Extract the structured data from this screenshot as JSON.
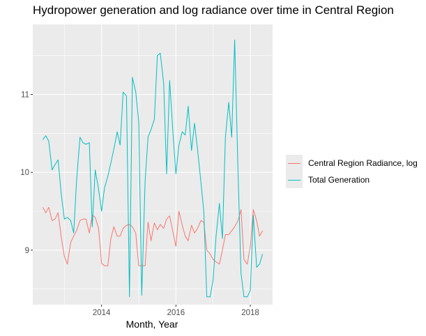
{
  "chart_data": {
    "type": "line",
    "title": "Hydropower generation and log radiance over time in Central Region",
    "xlabel": "Month, Year",
    "ylabel": "",
    "x_ticks": [
      "2014",
      "2016",
      "2018"
    ],
    "y_ticks": [
      9,
      10,
      11
    ],
    "xlim": [
      2012.15,
      2018.6
    ],
    "ylim": [
      8.3,
      11.9
    ],
    "grid": true,
    "legend_position": "right",
    "series": [
      {
        "name": "Central Region Radiance, log",
        "color": "#F8766D",
        "points": [
          [
            2012.42,
            9.55
          ],
          [
            2012.5,
            9.48
          ],
          [
            2012.58,
            9.55
          ],
          [
            2012.67,
            9.38
          ],
          [
            2012.75,
            9.4
          ],
          [
            2012.83,
            9.48
          ],
          [
            2012.92,
            9.15
          ],
          [
            2013.0,
            8.92
          ],
          [
            2013.08,
            8.82
          ],
          [
            2013.17,
            9.1
          ],
          [
            2013.25,
            9.18
          ],
          [
            2013.33,
            9.25
          ],
          [
            2013.42,
            9.38
          ],
          [
            2013.5,
            9.4
          ],
          [
            2013.58,
            9.4
          ],
          [
            2013.67,
            9.22
          ],
          [
            2013.75,
            9.45
          ],
          [
            2013.83,
            9.42
          ],
          [
            2013.92,
            9.28
          ],
          [
            2014.0,
            8.83
          ],
          [
            2014.08,
            8.8
          ],
          [
            2014.17,
            8.8
          ],
          [
            2014.25,
            9.15
          ],
          [
            2014.33,
            9.3
          ],
          [
            2014.42,
            9.18
          ],
          [
            2014.5,
            9.18
          ],
          [
            2014.58,
            9.28
          ],
          [
            2014.67,
            9.32
          ],
          [
            2014.75,
            9.33
          ],
          [
            2014.83,
            9.3
          ],
          [
            2014.92,
            9.22
          ],
          [
            2015.0,
            8.8
          ],
          [
            2015.08,
            8.8
          ],
          [
            2015.17,
            8.8
          ],
          [
            2015.25,
            9.36
          ],
          [
            2015.33,
            9.12
          ],
          [
            2015.42,
            9.35
          ],
          [
            2015.5,
            9.26
          ],
          [
            2015.58,
            9.33
          ],
          [
            2015.67,
            9.28
          ],
          [
            2015.75,
            9.4
          ],
          [
            2015.83,
            9.44
          ],
          [
            2015.92,
            9.23
          ],
          [
            2016.0,
            9.05
          ],
          [
            2016.08,
            9.5
          ],
          [
            2016.17,
            9.32
          ],
          [
            2016.25,
            9.18
          ],
          [
            2016.33,
            9.12
          ],
          [
            2016.42,
            9.32
          ],
          [
            2016.5,
            9.22
          ],
          [
            2016.58,
            9.28
          ],
          [
            2016.67,
            9.38
          ],
          [
            2016.75,
            9.36
          ],
          [
            2016.83,
            9.0
          ],
          [
            2016.92,
            8.95
          ],
          [
            2017.0,
            8.88
          ],
          [
            2017.08,
            8.85
          ],
          [
            2017.17,
            8.82
          ],
          [
            2017.25,
            9.0
          ],
          [
            2017.33,
            9.2
          ],
          [
            2017.42,
            9.2
          ],
          [
            2017.5,
            9.25
          ],
          [
            2017.58,
            9.3
          ],
          [
            2017.67,
            9.38
          ],
          [
            2017.75,
            9.52
          ],
          [
            2017.83,
            8.88
          ],
          [
            2017.92,
            8.82
          ],
          [
            2018.0,
            9.05
          ],
          [
            2018.08,
            9.52
          ],
          [
            2018.17,
            9.38
          ],
          [
            2018.25,
            9.18
          ],
          [
            2018.33,
            9.25
          ]
        ]
      },
      {
        "name": "Total Generation",
        "color": "#00BFC4",
        "points": [
          [
            2012.42,
            10.42
          ],
          [
            2012.5,
            10.47
          ],
          [
            2012.58,
            10.4
          ],
          [
            2012.67,
            10.03
          ],
          [
            2012.75,
            10.1
          ],
          [
            2012.83,
            10.16
          ],
          [
            2012.92,
            9.7
          ],
          [
            2013.0,
            9.4
          ],
          [
            2013.08,
            9.42
          ],
          [
            2013.17,
            9.38
          ],
          [
            2013.25,
            9.22
          ],
          [
            2013.33,
            9.9
          ],
          [
            2013.42,
            10.45
          ],
          [
            2013.5,
            10.38
          ],
          [
            2013.58,
            10.36
          ],
          [
            2013.67,
            10.38
          ],
          [
            2013.75,
            9.3
          ],
          [
            2013.83,
            10.03
          ],
          [
            2013.92,
            9.78
          ],
          [
            2014.0,
            9.5
          ],
          [
            2014.08,
            9.8
          ],
          [
            2014.17,
            9.95
          ],
          [
            2014.25,
            10.12
          ],
          [
            2014.33,
            10.3
          ],
          [
            2014.42,
            10.52
          ],
          [
            2014.5,
            10.35
          ],
          [
            2014.58,
            11.03
          ],
          [
            2014.67,
            10.98
          ],
          [
            2014.75,
            8.4
          ],
          [
            2014.83,
            11.22
          ],
          [
            2014.92,
            11.03
          ],
          [
            2015.0,
            10.65
          ],
          [
            2015.08,
            8.42
          ],
          [
            2015.17,
            9.88
          ],
          [
            2015.25,
            10.45
          ],
          [
            2015.33,
            10.55
          ],
          [
            2015.42,
            10.68
          ],
          [
            2015.5,
            11.5
          ],
          [
            2015.58,
            11.53
          ],
          [
            2015.67,
            11.15
          ],
          [
            2015.75,
            9.98
          ],
          [
            2015.83,
            11.18
          ],
          [
            2015.92,
            10.5
          ],
          [
            2016.0,
            9.98
          ],
          [
            2016.08,
            10.35
          ],
          [
            2016.17,
            10.52
          ],
          [
            2016.25,
            10.48
          ],
          [
            2016.33,
            10.85
          ],
          [
            2016.42,
            10.28
          ],
          [
            2016.5,
            10.63
          ],
          [
            2016.58,
            10.3
          ],
          [
            2016.67,
            9.88
          ],
          [
            2016.75,
            9.5
          ],
          [
            2016.83,
            8.4
          ],
          [
            2016.92,
            8.4
          ],
          [
            2017.0,
            8.62
          ],
          [
            2017.08,
            9.18
          ],
          [
            2017.17,
            9.6
          ],
          [
            2017.25,
            9.15
          ],
          [
            2017.33,
            10.45
          ],
          [
            2017.42,
            10.9
          ],
          [
            2017.5,
            10.45
          ],
          [
            2017.58,
            11.7
          ],
          [
            2017.67,
            10.0
          ],
          [
            2017.75,
            8.7
          ],
          [
            2017.83,
            8.4
          ],
          [
            2017.92,
            8.4
          ],
          [
            2018.0,
            8.48
          ],
          [
            2018.08,
            9.45
          ],
          [
            2018.17,
            8.78
          ],
          [
            2018.25,
            8.82
          ],
          [
            2018.33,
            8.95
          ]
        ]
      }
    ]
  }
}
